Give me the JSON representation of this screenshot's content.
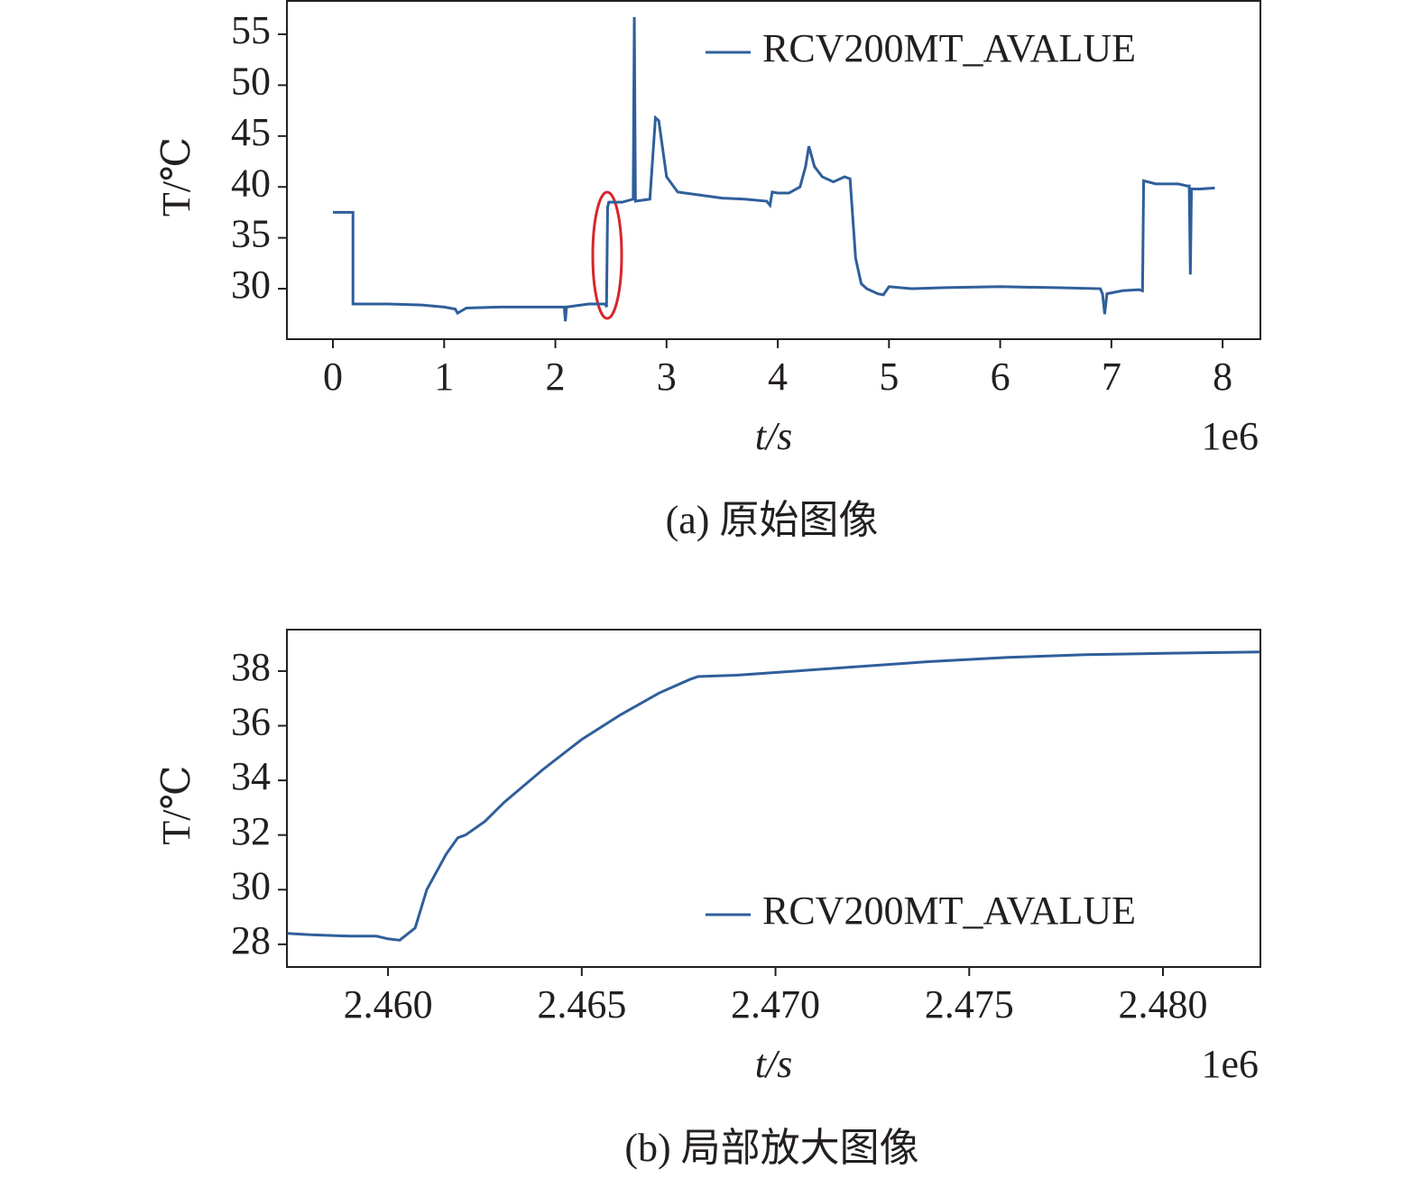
{
  "chart_data": [
    {
      "type": "line",
      "title": "(a) 原始图像",
      "xlabel": "t/s",
      "ylabel": "T/℃",
      "x_offset_label": "1e6",
      "xlim": [
        -0.414,
        8.34
      ],
      "xticks": [
        0,
        1,
        2,
        3,
        4,
        5,
        6,
        7,
        8
      ],
      "ylim": [
        25.04,
        58.37
      ],
      "yticks": [
        30,
        35,
        40,
        45,
        50,
        55
      ],
      "legend": "upper right",
      "series": [
        {
          "name": "RCV200MT_AVALUE",
          "color": "#2f5f9a",
          "x": [
            0,
            0.18,
            0.18,
            0.5,
            0.8,
            1.0,
            1.1,
            1.12,
            1.2,
            1.5,
            2.0,
            2.08,
            2.09,
            2.1,
            2.3,
            2.45,
            2.46,
            2.47,
            2.48,
            2.6,
            2.7,
            2.71,
            2.72,
            2.85,
            2.9,
            2.93,
            3.0,
            3.1,
            3.3,
            3.5,
            3.7,
            3.9,
            3.93,
            3.95,
            4.0,
            4.1,
            4.2,
            4.25,
            4.28,
            4.33,
            4.4,
            4.5,
            4.6,
            4.65,
            4.7,
            4.75,
            4.8,
            4.9,
            4.95,
            5.0,
            5.2,
            5.5,
            6.0,
            6.5,
            6.9,
            6.92,
            6.94,
            6.96,
            7.1,
            7.25,
            7.28,
            7.29,
            7.4,
            7.6,
            7.68,
            7.7,
            7.71,
            7.72,
            7.8,
            7.93
          ],
          "values": [
            37.5,
            37.5,
            28.5,
            28.5,
            28.4,
            28.2,
            28.0,
            27.6,
            28.1,
            28.2,
            28.2,
            28.2,
            26.8,
            28.2,
            28.5,
            28.5,
            28.2,
            38,
            38.5,
            38.5,
            38.8,
            56.7,
            38.6,
            38.8,
            46.8,
            46.5,
            41,
            39.5,
            39.2,
            38.9,
            38.8,
            38.6,
            38.2,
            39.5,
            39.4,
            39.4,
            40,
            42,
            44,
            42,
            41,
            40.5,
            41,
            40.8,
            33,
            30.5,
            30,
            29.5,
            29.4,
            30.2,
            30,
            30.1,
            30.2,
            30.1,
            30,
            29.5,
            27.5,
            29.5,
            29.8,
            29.9,
            29.8,
            40.6,
            40.3,
            40.3,
            40.1,
            40.1,
            31.4,
            39.8,
            39.8,
            39.9
          ]
        }
      ]
    },
    {
      "type": "line",
      "title": "(b) 局部放大图像",
      "xlabel": "t/s",
      "ylabel": "T/℃",
      "x_offset_label": "1e6",
      "xlim": [
        2.45739,
        2.482515
      ],
      "xticks": [
        {
          "value": 2.46,
          "label": "2.460"
        },
        {
          "value": 2.465,
          "label": "2.465"
        },
        {
          "value": 2.47,
          "label": "2.470"
        },
        {
          "value": 2.475,
          "label": "2.475"
        },
        {
          "value": 2.48,
          "label": "2.480"
        }
      ],
      "ylim": [
        27.17,
        39.55
      ],
      "yticks": [
        28,
        30,
        32,
        34,
        36,
        38
      ],
      "legend": "lower right",
      "series": [
        {
          "name": "RCV200MT_AVALUE",
          "color": "#2f5f9a",
          "x": [
            2.4574,
            2.458,
            2.459,
            2.4597,
            2.46,
            2.4603,
            2.4607,
            2.461,
            2.4615,
            2.4618,
            2.462,
            2.4625,
            2.463,
            2.464,
            2.465,
            2.466,
            2.467,
            2.4678,
            2.468,
            2.469,
            2.47,
            2.472,
            2.474,
            2.476,
            2.478,
            2.48,
            2.4825
          ],
          "values": [
            28.4,
            28.35,
            28.3,
            28.3,
            28.2,
            28.15,
            28.6,
            30,
            31.3,
            31.9,
            32.0,
            32.5,
            33.2,
            34.4,
            35.5,
            36.4,
            37.2,
            37.7,
            37.8,
            37.85,
            37.95,
            38.15,
            38.35,
            38.5,
            38.6,
            38.65,
            38.7
          ]
        }
      ]
    }
  ]
}
